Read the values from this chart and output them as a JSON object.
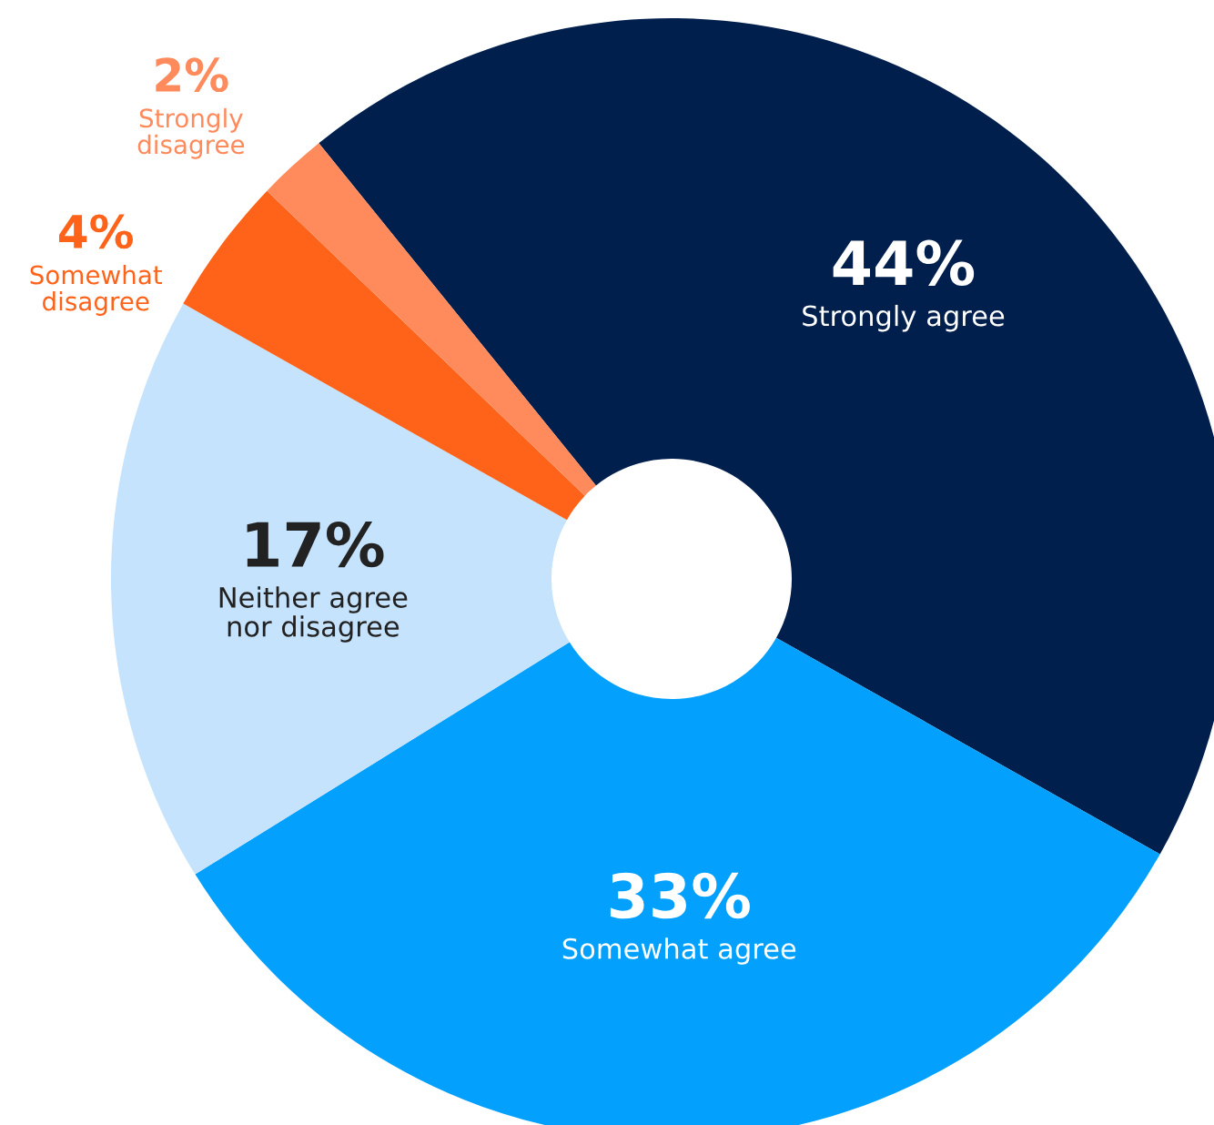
{
  "chart_data": {
    "type": "donut",
    "categories": [
      "Strongly agree",
      "Somewhat agree",
      "Neither agree\nnor disagree",
      "Somewhat\ndisagree",
      "Strongly\ndisagree"
    ],
    "values": [
      44,
      33,
      17,
      4,
      2
    ],
    "colors": [
      "#001f4d",
      "#03a0fd",
      "#c5e3fd",
      "#ff6319",
      "#ff8a5c"
    ],
    "value_labels": [
      "44%",
      "33%",
      "17%",
      "4%",
      "2%"
    ],
    "legend": false
  }
}
